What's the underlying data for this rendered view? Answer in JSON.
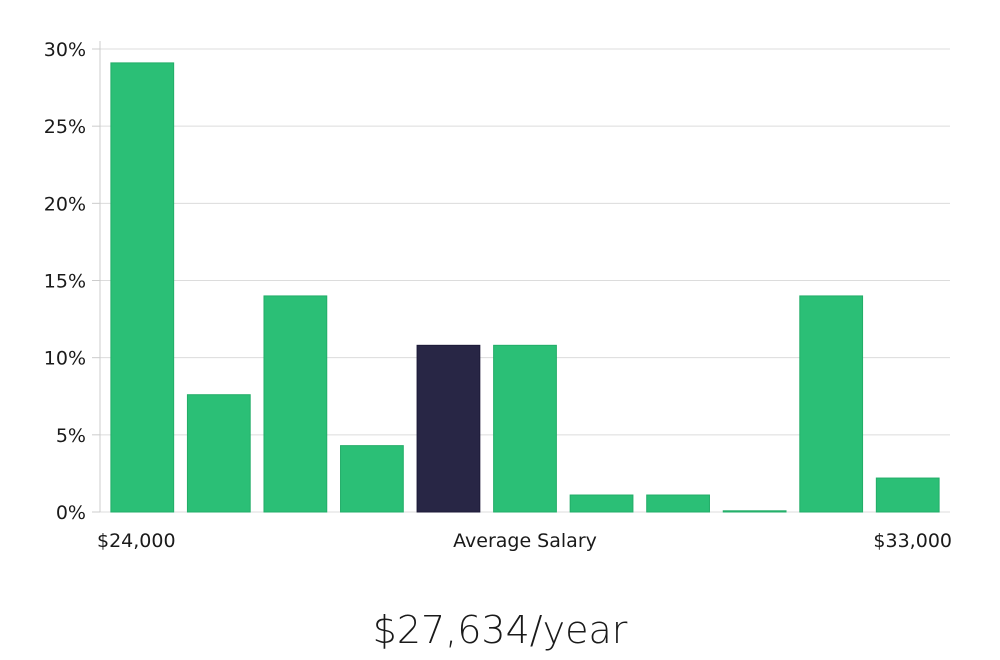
{
  "colors": {
    "bar": "#2bbf76",
    "bar_highlight": "#282645",
    "grid": "#dcdcdc",
    "axis": "#cccccc"
  },
  "chart_data": {
    "type": "bar",
    "categories": [
      "1",
      "2",
      "3",
      "4",
      "5",
      "6",
      "7",
      "8",
      "9",
      "10",
      "11"
    ],
    "values": [
      29.1,
      7.6,
      14.0,
      4.3,
      10.8,
      10.8,
      1.1,
      1.1,
      0.05,
      14.0,
      2.2
    ],
    "highlight_index": 4,
    "ylim": [
      0,
      30
    ],
    "yticks": [
      0,
      5,
      10,
      15,
      20,
      25,
      30
    ],
    "ytick_labels": [
      "0%",
      "5%",
      "10%",
      "15%",
      "20%",
      "25%",
      "30%"
    ],
    "x_labels": {
      "left": "$24,000",
      "center": "Average Salary",
      "right": "$33,000"
    },
    "grid": true
  },
  "summary": {
    "salary": "$27,634/year"
  }
}
